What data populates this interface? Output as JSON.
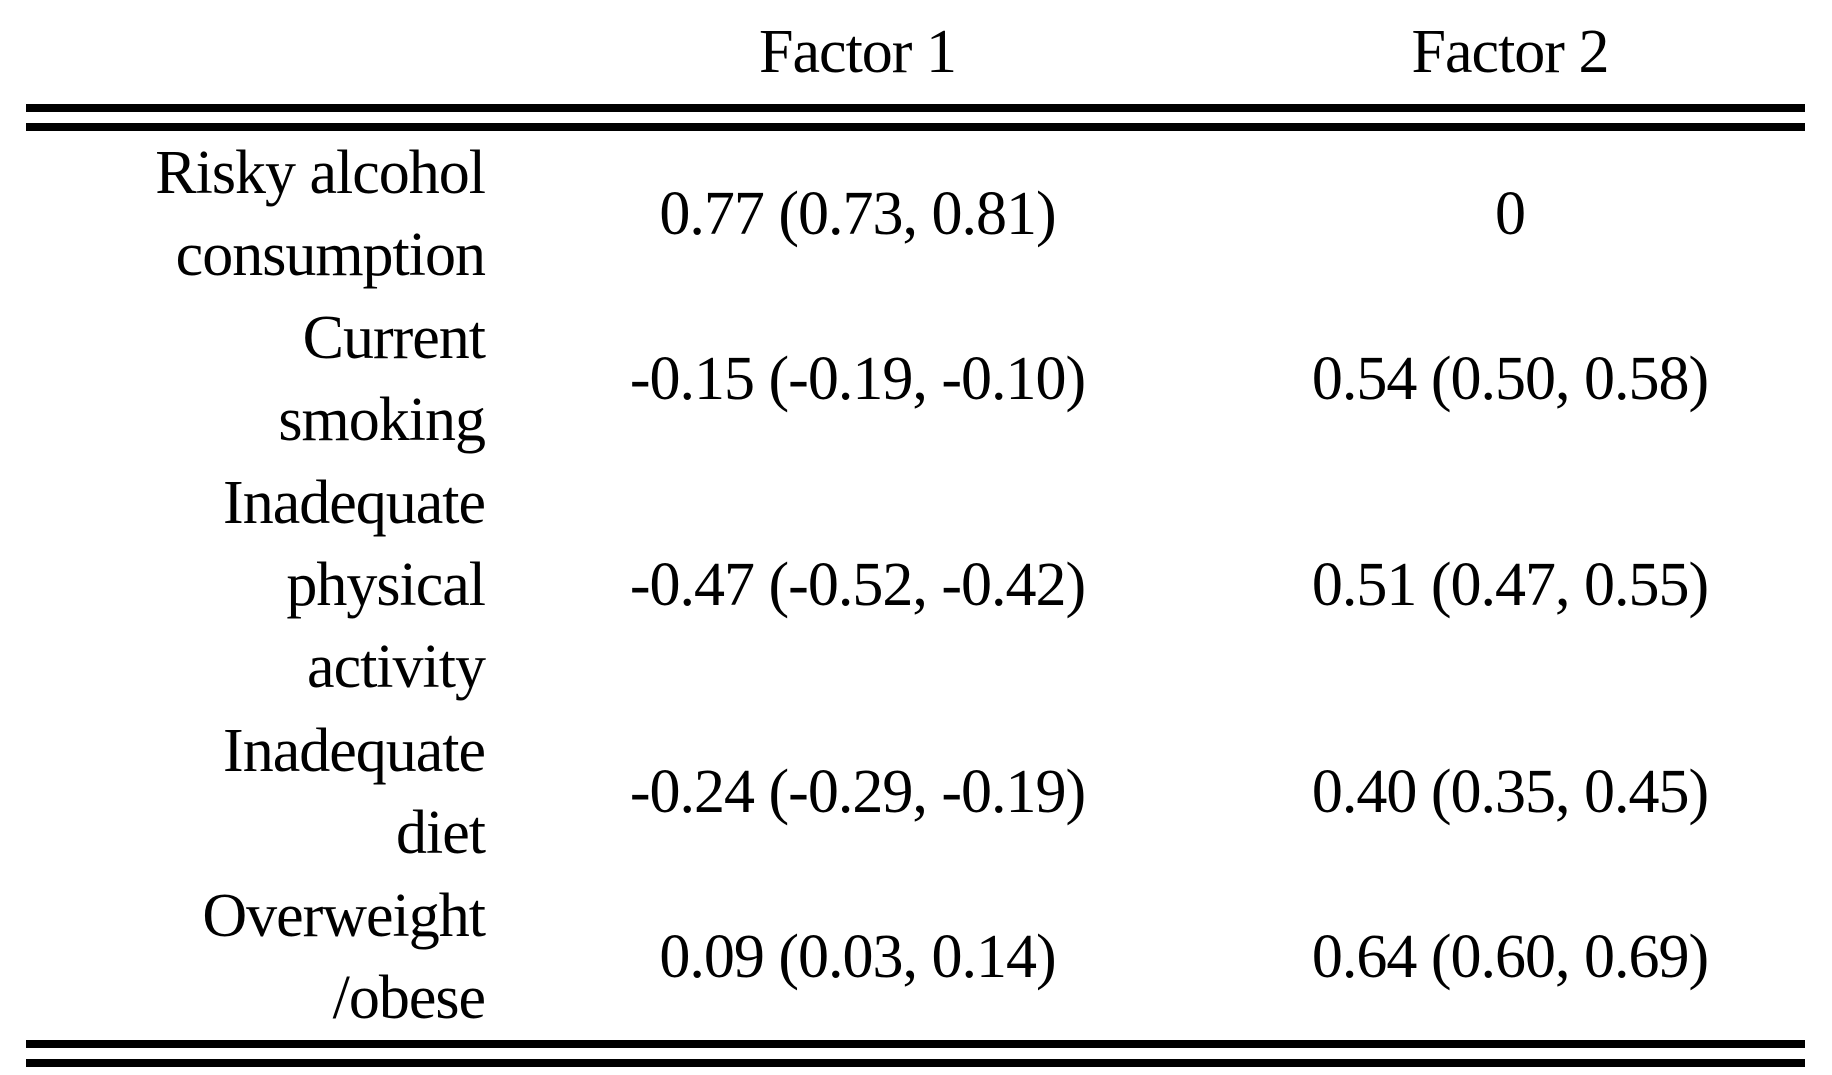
{
  "table": {
    "headers": [
      "",
      "Factor 1",
      "Factor 2"
    ],
    "rows": [
      {
        "label": "Risky alcohol\nconsumption",
        "factor1": "0.77 (0.73, 0.81)",
        "factor2": "0"
      },
      {
        "label": "Current\nsmoking",
        "factor1": "-0.15 (-0.19, -0.10)",
        "factor2": "0.54 (0.50, 0.58)"
      },
      {
        "label": "Inadequate\nphysical\nactivity",
        "factor1": "-0.47 (-0.52, -0.42)",
        "factor2": "0.51 (0.47, 0.55)"
      },
      {
        "label": "Inadequate\ndiet",
        "factor1": "-0.24 (-0.29, -0.19)",
        "factor2": "0.40 (0.35, 0.45)"
      },
      {
        "label": "Overweight\n/obese",
        "factor1": "0.09 (0.03, 0.14)",
        "factor2": "0.64 (0.60, 0.69)"
      }
    ]
  },
  "chart_data": {
    "type": "table",
    "title": "",
    "columns": [
      "",
      "Factor 1",
      "Factor 2"
    ],
    "row_labels": [
      "Risky alcohol consumption",
      "Current smoking",
      "Inadequate physical activity",
      "Inadequate diet",
      "Overweight/obese"
    ],
    "cells": [
      [
        "0.77 (0.73, 0.81)",
        "0"
      ],
      [
        "-0.15 (-0.19, -0.10)",
        "0.54 (0.50, 0.58)"
      ],
      [
        "-0.47 (-0.52, -0.42)",
        "0.51 (0.47, 0.55)"
      ],
      [
        "-0.24 (-0.29, -0.19)",
        "0.40 (0.35, 0.45)"
      ],
      [
        "0.09 (0.03, 0.14)",
        "0.64 (0.60, 0.69)"
      ]
    ],
    "series": [
      {
        "name": "Factor 1",
        "values": [
          0.77,
          -0.15,
          -0.47,
          -0.24,
          0.09
        ],
        "ci_low": [
          0.73,
          -0.19,
          -0.52,
          -0.29,
          0.03
        ],
        "ci_high": [
          0.81,
          -0.1,
          -0.42,
          -0.19,
          0.14
        ]
      },
      {
        "name": "Factor 2",
        "values": [
          0,
          0.54,
          0.51,
          0.4,
          0.64
        ],
        "ci_low": [
          null,
          0.5,
          0.47,
          0.35,
          0.6
        ],
        "ci_high": [
          null,
          0.58,
          0.55,
          0.45,
          0.69
        ]
      }
    ],
    "layout": {
      "header_rule": "double",
      "bottom_rule": "double",
      "grid": false
    },
    "colors": {
      "text": "#000000",
      "background": "#ffffff",
      "rule": "#000000"
    }
  }
}
